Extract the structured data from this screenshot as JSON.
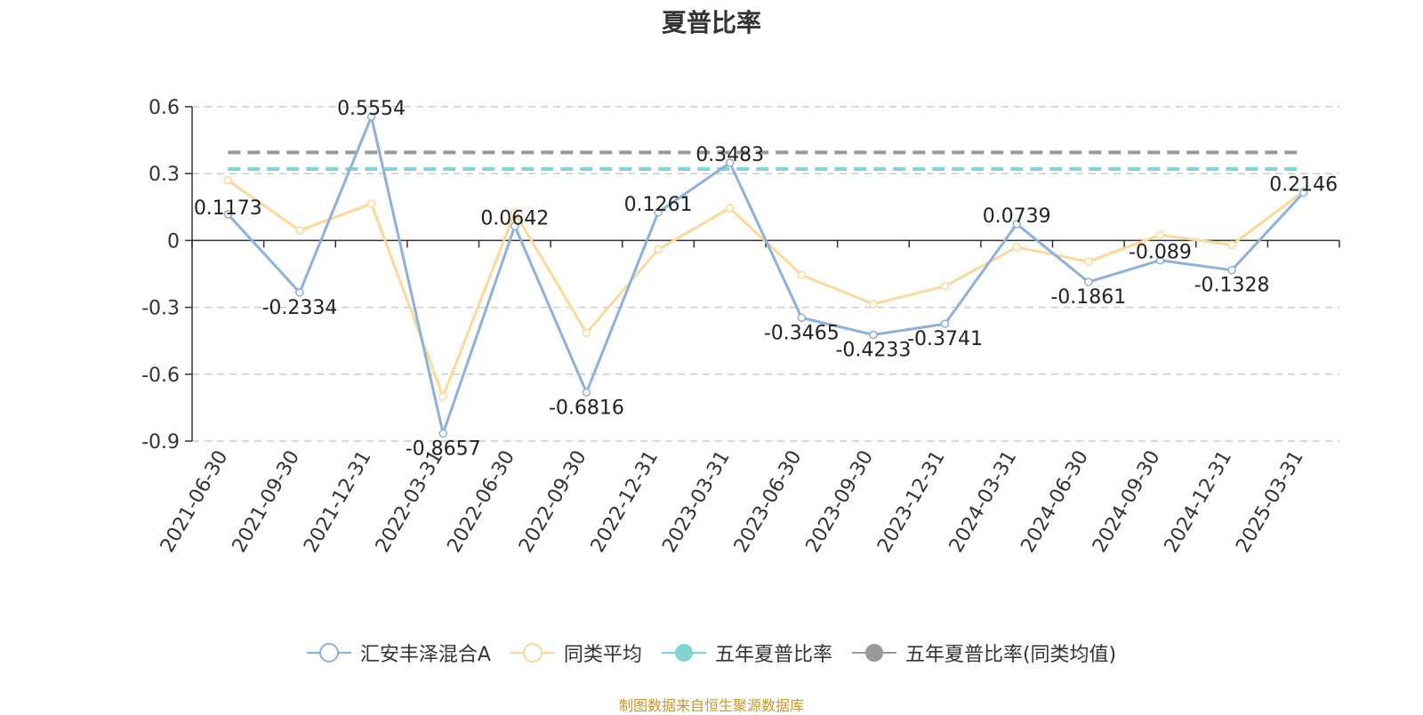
{
  "chart_data": {
    "type": "line",
    "title": "夏普比率",
    "categories": [
      "2021-06-30",
      "2021-09-30",
      "2021-12-31",
      "2022-03-31",
      "2022-06-30",
      "2022-09-30",
      "2022-12-31",
      "2023-03-31",
      "2023-06-30",
      "2023-09-30",
      "2023-12-31",
      "2024-03-31",
      "2024-06-30",
      "2024-09-30",
      "2024-12-31",
      "2025-03-31"
    ],
    "y_ticks": [
      "0.6",
      "0.3",
      "0",
      "-0.3",
      "-0.6",
      "-0.9"
    ],
    "ylim": [
      -0.9,
      0.6
    ],
    "grid": true,
    "legend_position": "bottom",
    "series": [
      {
        "name": "汇安丰泽混合A",
        "color": "#8eb0db",
        "values": [
          0.1173,
          -0.2334,
          0.5554,
          -0.8657,
          0.0642,
          -0.6816,
          0.1261,
          0.3483,
          -0.3465,
          -0.4233,
          -0.3741,
          0.0739,
          -0.1861,
          -0.089,
          -0.1328,
          0.2146
        ],
        "labels": [
          "0.1173",
          "-0.2334",
          "0.5554",
          "-0.8657",
          "0.0642",
          "-0.6816",
          "0.1261",
          "0.3483",
          "-0.3465",
          "-0.4233",
          "-0.3741",
          "0.0739",
          "-0.1861",
          "-0.089",
          "-0.1328",
          "0.2146"
        ]
      },
      {
        "name": "同类平均",
        "color": "#fcd99a",
        "values": [
          0.27,
          0.045,
          0.165,
          -0.7,
          0.125,
          -0.415,
          -0.04,
          0.145,
          -0.155,
          -0.285,
          -0.205,
          -0.03,
          -0.095,
          0.025,
          -0.02,
          0.22
        ]
      }
    ],
    "reference_lines": [
      {
        "name": "五年夏普比率",
        "color": "#7fd3d3",
        "value": 0.32
      },
      {
        "name": "五年夏普比率(同类均值)",
        "color": "#999999",
        "value": 0.395
      }
    ]
  },
  "source_text": "制图数据来自恒生聚源数据库"
}
